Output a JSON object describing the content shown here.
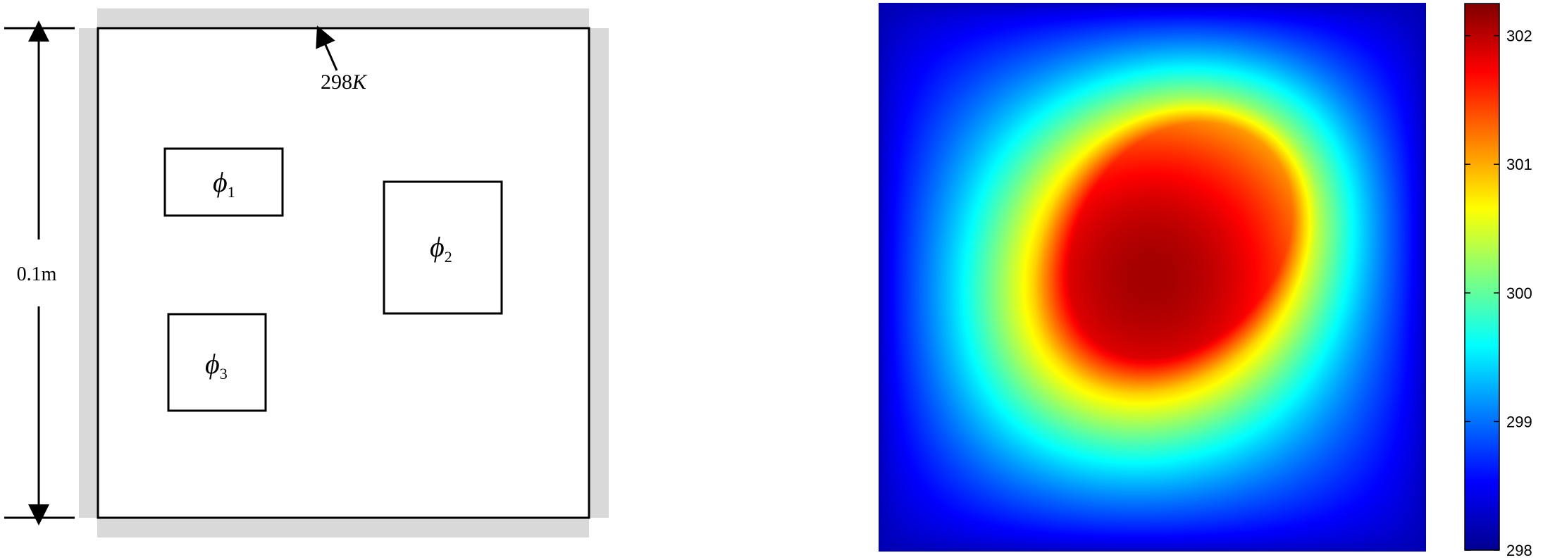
{
  "schematic": {
    "dimension_label": "0.1m",
    "boundary_label": {
      "value": "298",
      "unit": "K"
    },
    "components": [
      {
        "symbol": "ϕ",
        "index": "1"
      },
      {
        "symbol": "ϕ",
        "index": "2"
      },
      {
        "symbol": "ϕ",
        "index": "3"
      }
    ]
  },
  "heatmap": {
    "colormap": "jet",
    "hotspot_color": "#7f0000",
    "boundary_color": "#00008f",
    "colorbar": {
      "min": 298,
      "max": 302.25,
      "ticks": [
        "298",
        "299",
        "300",
        "301",
        "302"
      ]
    }
  },
  "chart_data": {
    "type": "heatmap",
    "title": "",
    "colorbar_ticks": [
      298,
      299,
      300,
      301,
      302
    ],
    "value_range": [
      298,
      302.25
    ],
    "grid": false,
    "legend": "colorbar-right"
  }
}
